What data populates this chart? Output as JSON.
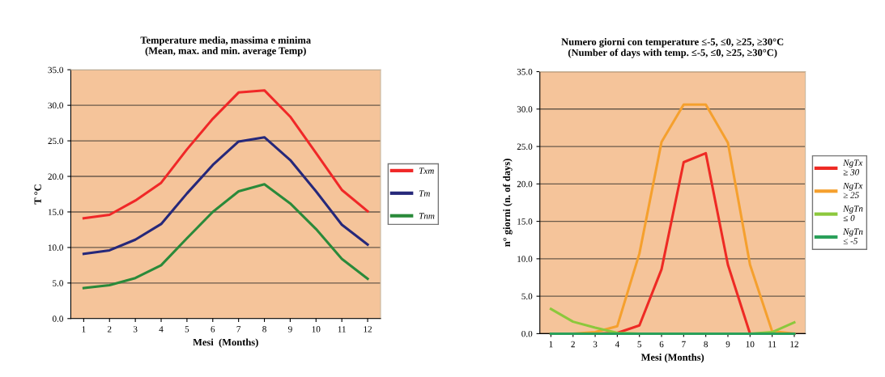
{
  "chart_data": [
    {
      "type": "line",
      "title": "Temperature media, massima e minima\n(Mean, max. and min. average Temp)",
      "xlabel": "Mesi  (Months)",
      "ylabel": "T °C",
      "categories": [
        "1",
        "2",
        "3",
        "4",
        "5",
        "6",
        "7",
        "8",
        "9",
        "10",
        "11",
        "12"
      ],
      "series": [
        {
          "name": "Txm",
          "color": "#f02828",
          "values": [
            14.1,
            14.6,
            16.6,
            19.1,
            23.8,
            28.1,
            31.8,
            32.1,
            28.4,
            23.3,
            18.1,
            15.1
          ]
        },
        {
          "name": "Tm",
          "color": "#26287a",
          "values": [
            9.1,
            9.6,
            11.1,
            13.3,
            17.6,
            21.6,
            24.9,
            25.5,
            22.3,
            17.9,
            13.2,
            10.4
          ]
        },
        {
          "name": "Tnm",
          "color": "#2a8a3a",
          "values": [
            4.3,
            4.7,
            5.7,
            7.5,
            11.3,
            15.0,
            17.9,
            18.9,
            16.2,
            12.6,
            8.4,
            5.6
          ]
        }
      ],
      "ylim": [
        0,
        35
      ],
      "yticks": [
        {
          "value": 0,
          "label": "0.0"
        },
        {
          "value": 5,
          "label": "5.0"
        },
        {
          "value": 10,
          "label": "10.0"
        },
        {
          "value": 15,
          "label": "15.0"
        },
        {
          "value": 20,
          "label": "20.0"
        },
        {
          "value": 25,
          "label": "25.0"
        },
        {
          "value": 30,
          "label": "30.0"
        },
        {
          "value": 35,
          "label": "35.0"
        }
      ],
      "grid": "y",
      "legend": "right",
      "marker": "none",
      "line_style": "solid"
    },
    {
      "type": "line",
      "title": "Numero giorni con temperature ≤-5, ≤0, ≥25, ≥30°C\n(Number of days with temp. ≤-5, ≤0, ≥25, ≥30°C)",
      "xlabel": "Mesi (Months)",
      "ylabel": "n° giorni (n. of days)",
      "categories": [
        "1",
        "2",
        "3",
        "4",
        "5",
        "6",
        "7",
        "8",
        "9",
        "10",
        "11",
        "12"
      ],
      "series": [
        {
          "name": "NgTx ≥ 30",
          "color": "#ee2a24",
          "values": [
            0,
            0,
            0,
            0.1,
            1.1,
            8.6,
            22.9,
            24.1,
            9.2,
            0,
            0,
            0
          ]
        },
        {
          "name": "NgTx ≥ 25",
          "color": "#f5a02e",
          "values": [
            0,
            0,
            0.2,
            1.0,
            10.7,
            25.6,
            30.6,
            30.6,
            25.5,
            9.2,
            0.3,
            0
          ]
        },
        {
          "name": "NgTn ≤ 0",
          "color": "#8cc83c",
          "values": [
            3.3,
            1.6,
            0.8,
            0.1,
            0,
            0,
            0,
            0,
            0,
            0,
            0.2,
            1.5
          ]
        },
        {
          "name": "NgTn ≤ -5",
          "color": "#2aa05a",
          "values": [
            0,
            0,
            0,
            0,
            0,
            0,
            0,
            0,
            0,
            0,
            0,
            0
          ]
        }
      ],
      "ylim": [
        0,
        35
      ],
      "yticks": [
        {
          "value": 0,
          "label": "0.0"
        },
        {
          "value": 5,
          "label": "5.0"
        },
        {
          "value": 10,
          "label": "10.0"
        },
        {
          "value": 15,
          "label": "15.0"
        },
        {
          "value": 20,
          "label": "20.0"
        },
        {
          "value": 25,
          "label": "25.0"
        },
        {
          "value": 30,
          "label": "30.0"
        },
        {
          "value": 35,
          "label": "35.0"
        }
      ],
      "grid": "y",
      "legend": "right",
      "marker": "none",
      "line_style": "solid"
    }
  ]
}
